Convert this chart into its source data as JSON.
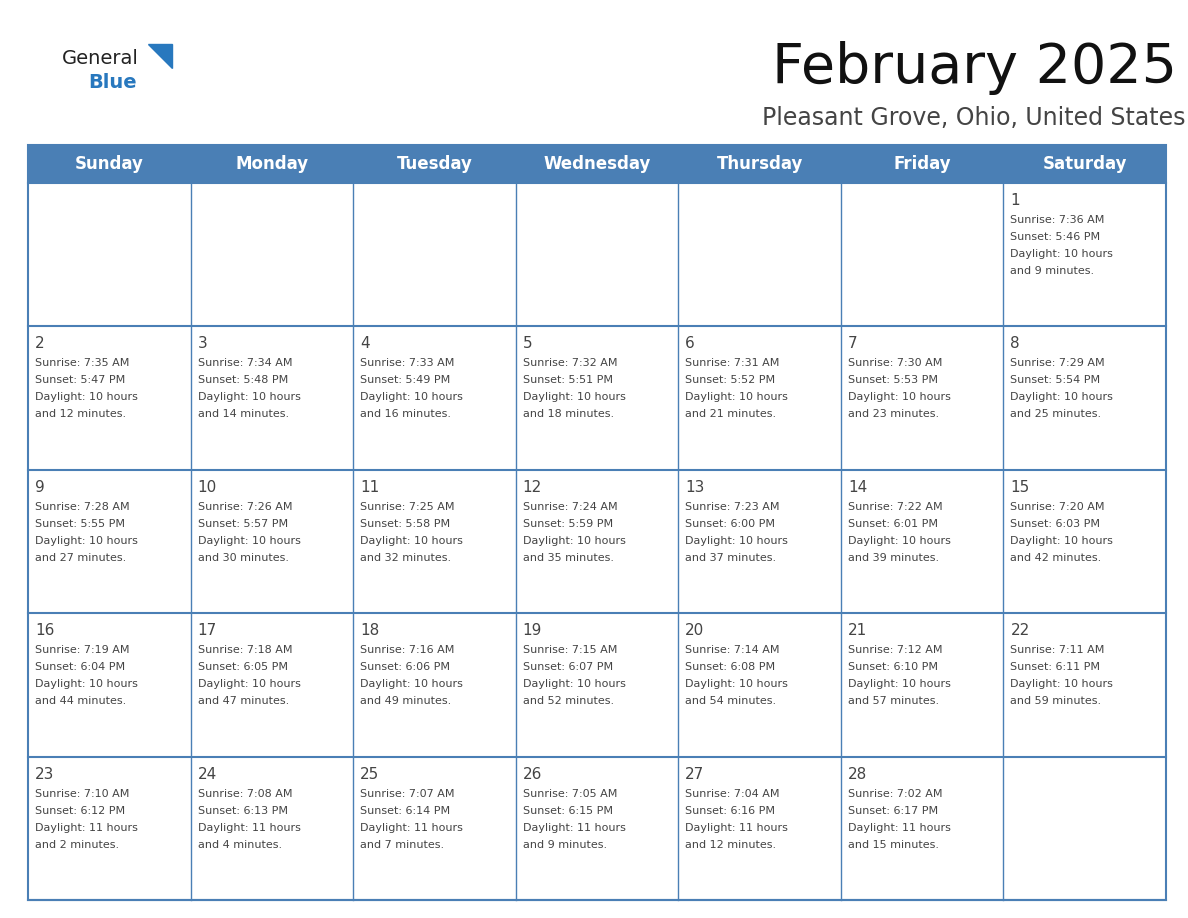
{
  "title": "February 2025",
  "subtitle": "Pleasant Grove, Ohio, United States",
  "days_of_week": [
    "Sunday",
    "Monday",
    "Tuesday",
    "Wednesday",
    "Thursday",
    "Friday",
    "Saturday"
  ],
  "header_bg": "#4a7fb5",
  "header_text_color": "#ffffff",
  "cell_bg": "#ffffff",
  "grid_line_color": "#4a7fb5",
  "text_color": "#444444",
  "title_color": "#111111",
  "subtitle_color": "#444444",
  "logo_general_color": "#222222",
  "logo_blue_color": "#2878be",
  "weeks": [
    [
      {
        "day": null,
        "sunrise": null,
        "sunset": null,
        "daylight": null
      },
      {
        "day": null,
        "sunrise": null,
        "sunset": null,
        "daylight": null
      },
      {
        "day": null,
        "sunrise": null,
        "sunset": null,
        "daylight": null
      },
      {
        "day": null,
        "sunrise": null,
        "sunset": null,
        "daylight": null
      },
      {
        "day": null,
        "sunrise": null,
        "sunset": null,
        "daylight": null
      },
      {
        "day": null,
        "sunrise": null,
        "sunset": null,
        "daylight": null
      },
      {
        "day": 1,
        "sunrise": "7:36 AM",
        "sunset": "5:46 PM",
        "daylight": "10 hours and 9 minutes."
      }
    ],
    [
      {
        "day": 2,
        "sunrise": "7:35 AM",
        "sunset": "5:47 PM",
        "daylight": "10 hours and 12 minutes."
      },
      {
        "day": 3,
        "sunrise": "7:34 AM",
        "sunset": "5:48 PM",
        "daylight": "10 hours and 14 minutes."
      },
      {
        "day": 4,
        "sunrise": "7:33 AM",
        "sunset": "5:49 PM",
        "daylight": "10 hours and 16 minutes."
      },
      {
        "day": 5,
        "sunrise": "7:32 AM",
        "sunset": "5:51 PM",
        "daylight": "10 hours and 18 minutes."
      },
      {
        "day": 6,
        "sunrise": "7:31 AM",
        "sunset": "5:52 PM",
        "daylight": "10 hours and 21 minutes."
      },
      {
        "day": 7,
        "sunrise": "7:30 AM",
        "sunset": "5:53 PM",
        "daylight": "10 hours and 23 minutes."
      },
      {
        "day": 8,
        "sunrise": "7:29 AM",
        "sunset": "5:54 PM",
        "daylight": "10 hours and 25 minutes."
      }
    ],
    [
      {
        "day": 9,
        "sunrise": "7:28 AM",
        "sunset": "5:55 PM",
        "daylight": "10 hours and 27 minutes."
      },
      {
        "day": 10,
        "sunrise": "7:26 AM",
        "sunset": "5:57 PM",
        "daylight": "10 hours and 30 minutes."
      },
      {
        "day": 11,
        "sunrise": "7:25 AM",
        "sunset": "5:58 PM",
        "daylight": "10 hours and 32 minutes."
      },
      {
        "day": 12,
        "sunrise": "7:24 AM",
        "sunset": "5:59 PM",
        "daylight": "10 hours and 35 minutes."
      },
      {
        "day": 13,
        "sunrise": "7:23 AM",
        "sunset": "6:00 PM",
        "daylight": "10 hours and 37 minutes."
      },
      {
        "day": 14,
        "sunrise": "7:22 AM",
        "sunset": "6:01 PM",
        "daylight": "10 hours and 39 minutes."
      },
      {
        "day": 15,
        "sunrise": "7:20 AM",
        "sunset": "6:03 PM",
        "daylight": "10 hours and 42 minutes."
      }
    ],
    [
      {
        "day": 16,
        "sunrise": "7:19 AM",
        "sunset": "6:04 PM",
        "daylight": "10 hours and 44 minutes."
      },
      {
        "day": 17,
        "sunrise": "7:18 AM",
        "sunset": "6:05 PM",
        "daylight": "10 hours and 47 minutes."
      },
      {
        "day": 18,
        "sunrise": "7:16 AM",
        "sunset": "6:06 PM",
        "daylight": "10 hours and 49 minutes."
      },
      {
        "day": 19,
        "sunrise": "7:15 AM",
        "sunset": "6:07 PM",
        "daylight": "10 hours and 52 minutes."
      },
      {
        "day": 20,
        "sunrise": "7:14 AM",
        "sunset": "6:08 PM",
        "daylight": "10 hours and 54 minutes."
      },
      {
        "day": 21,
        "sunrise": "7:12 AM",
        "sunset": "6:10 PM",
        "daylight": "10 hours and 57 minutes."
      },
      {
        "day": 22,
        "sunrise": "7:11 AM",
        "sunset": "6:11 PM",
        "daylight": "10 hours and 59 minutes."
      }
    ],
    [
      {
        "day": 23,
        "sunrise": "7:10 AM",
        "sunset": "6:12 PM",
        "daylight": "11 hours and 2 minutes."
      },
      {
        "day": 24,
        "sunrise": "7:08 AM",
        "sunset": "6:13 PM",
        "daylight": "11 hours and 4 minutes."
      },
      {
        "day": 25,
        "sunrise": "7:07 AM",
        "sunset": "6:14 PM",
        "daylight": "11 hours and 7 minutes."
      },
      {
        "day": 26,
        "sunrise": "7:05 AM",
        "sunset": "6:15 PM",
        "daylight": "11 hours and 9 minutes."
      },
      {
        "day": 27,
        "sunrise": "7:04 AM",
        "sunset": "6:16 PM",
        "daylight": "11 hours and 12 minutes."
      },
      {
        "day": 28,
        "sunrise": "7:02 AM",
        "sunset": "6:17 PM",
        "daylight": "11 hours and 15 minutes."
      },
      {
        "day": null,
        "sunrise": null,
        "sunset": null,
        "daylight": null
      }
    ]
  ]
}
